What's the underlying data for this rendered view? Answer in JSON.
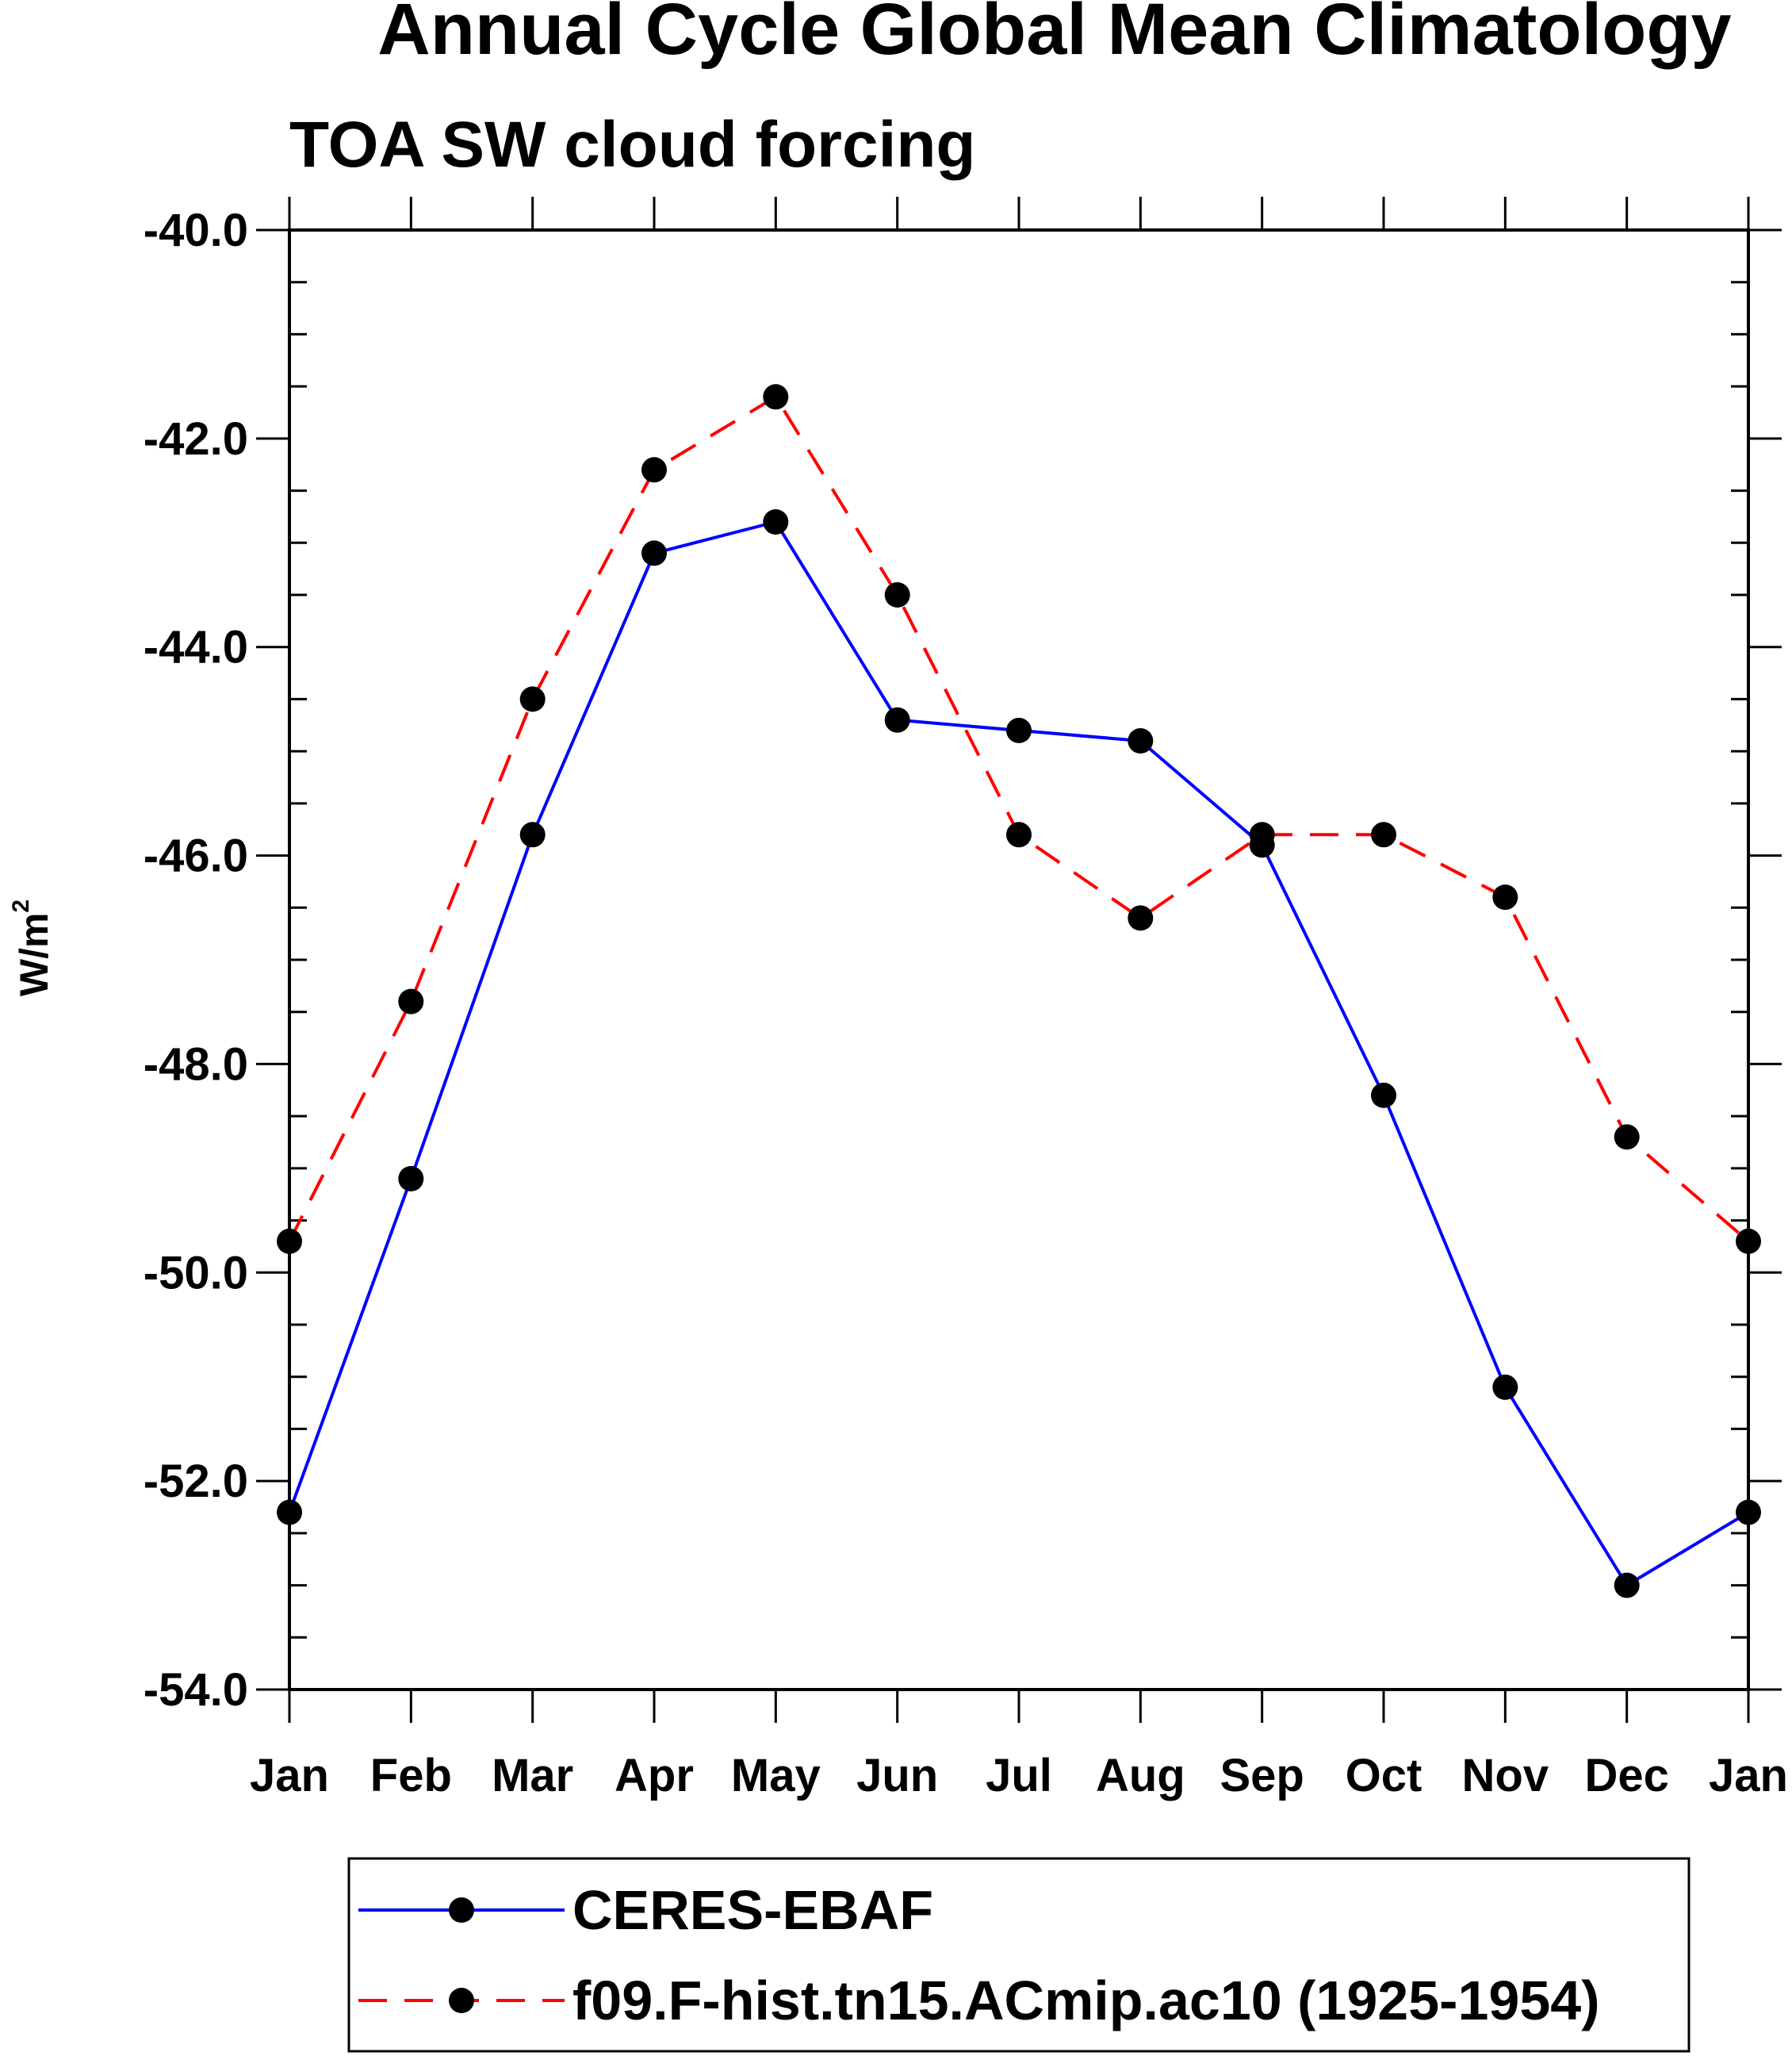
{
  "chart_data": {
    "type": "line",
    "title": "Annual Cycle Global Mean Climatology",
    "subtitle": "TOA SW cloud forcing",
    "ylabel": "W/m",
    "ylabel_superscript": "2",
    "xlabel": "",
    "categories": [
      "Jan",
      "Feb",
      "Mar",
      "Apr",
      "May",
      "Jun",
      "Jul",
      "Aug",
      "Sep",
      "Oct",
      "Nov",
      "Dec",
      "Jan"
    ],
    "ylim": [
      -54.0,
      -40.0
    ],
    "yticks": [
      -54.0,
      -52.0,
      -50.0,
      -48.0,
      -46.0,
      -44.0,
      -42.0,
      -40.0
    ],
    "ytick_labels": [
      "-54.0",
      "-52.0",
      "-50.0",
      "-48.0",
      "-46.0",
      "-44.0",
      "-42.0",
      "-40.0"
    ],
    "series": [
      {
        "name": "CERES-EBAF",
        "color": "#0000ff",
        "dash": "solid",
        "values": [
          -52.3,
          -49.1,
          -45.8,
          -43.1,
          -42.8,
          -44.7,
          -44.8,
          -44.9,
          -45.9,
          -48.3,
          -51.1,
          -53.0,
          -52.3
        ]
      },
      {
        "name": "f09.F-hist.tn15.ACmip.ac10 (1925-1954)",
        "color": "#ff0000",
        "dash": "dashed",
        "values": [
          -49.7,
          -47.4,
          -44.5,
          -42.3,
          -41.6,
          -43.5,
          -45.8,
          -46.6,
          -45.8,
          -45.8,
          -46.4,
          -48.7,
          -49.7
        ]
      }
    ],
    "legend_position": "bottom"
  }
}
